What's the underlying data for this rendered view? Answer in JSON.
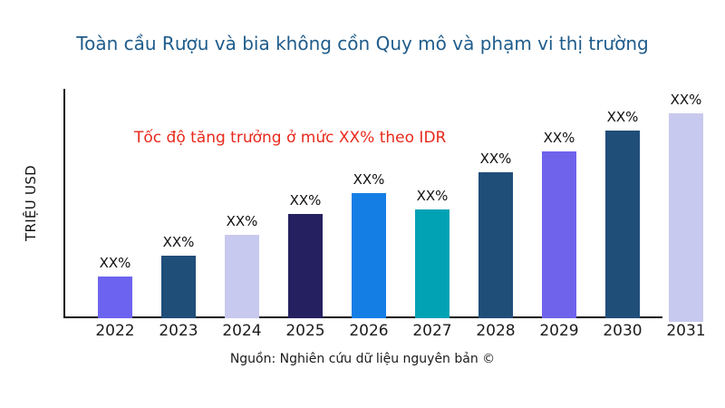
{
  "page": {
    "title": "Toàn cầu Rượu và bia không cồn Quy mô và phạm vi thị trường",
    "title_color": "#1F5C8B",
    "source": "Nguồn: Nghiên cứu dữ liệu nguyên bản ©"
  },
  "chart_data": {
    "type": "bar",
    "title": "Toàn cầu Rượu và bia không cồn Quy mô và phạm vi thị trường",
    "xlabel": "",
    "ylabel": "TRIỆU USD",
    "grid": false,
    "legend": false,
    "annotation": {
      "text": "Tốc độ tăng trưởng ở mức XX% theo IDR",
      "color": "#E8291C"
    },
    "categories": [
      "2022",
      "2023",
      "2024",
      "2025",
      "2026",
      "2027",
      "2028",
      "2029",
      "2030",
      "2031"
    ],
    "value_labels": [
      "XX%",
      "XX%",
      "XX%",
      "XX%",
      "XX%",
      "XX%",
      "XX%",
      "XX%",
      "XX%",
      "XX%"
    ],
    "relative_bar_heights_pct_of_max": [
      20,
      30,
      40,
      50,
      60,
      52,
      70,
      80,
      90,
      100
    ],
    "bar_colors": [
      "#6C63F0",
      "#1F4E79",
      "#C8C9EE",
      "#252060",
      "#157EE5",
      "#02A2B5",
      "#1F4E79",
      "#6F63EC",
      "#1F4E79",
      "#C8C9EE"
    ],
    "axis_color": "#111111"
  }
}
